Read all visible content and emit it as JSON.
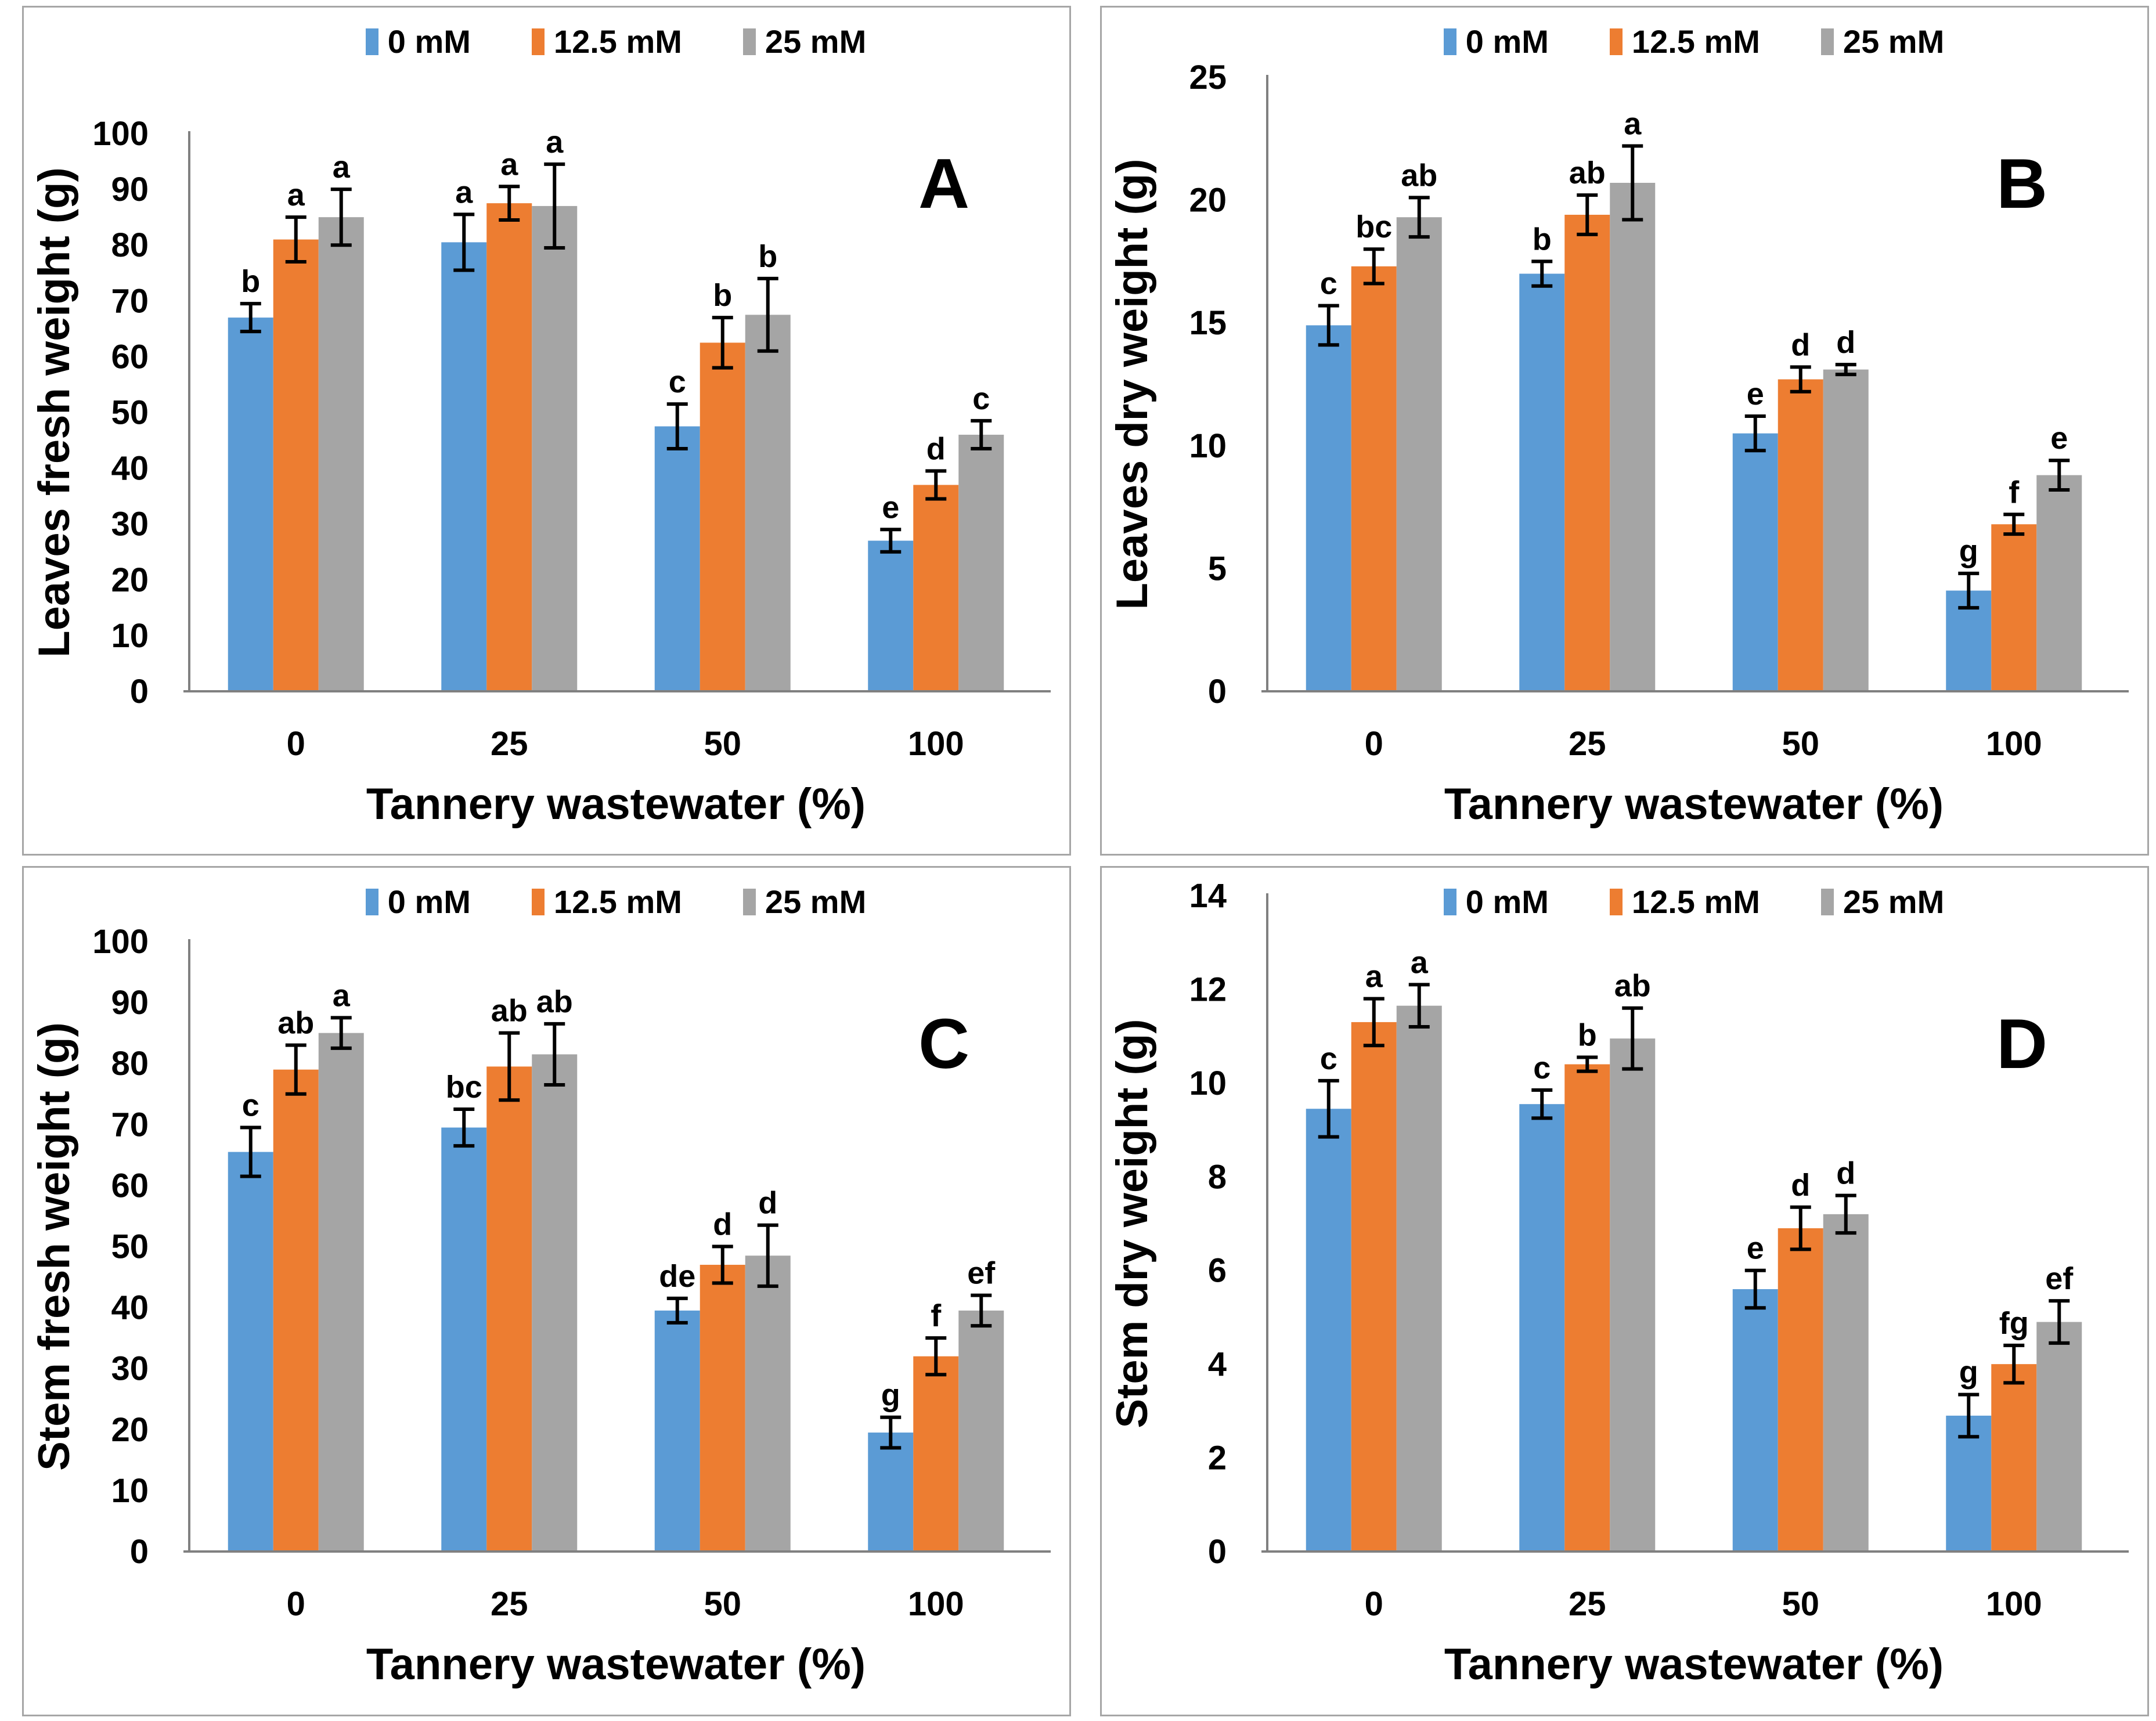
{
  "legend": {
    "position": "top",
    "labels": [
      "0 mM",
      "12.5 mM",
      "25 mM"
    ]
  },
  "colors": {
    "series": [
      "#5B9BD5",
      "#ED7D31",
      "#A5A5A5"
    ],
    "axis_line": "#808080",
    "error_bar": "#000000",
    "panel_border": "#a6a6a6",
    "text": "#000000"
  },
  "chart_data": [
    {
      "type": "bar",
      "panel_label": "A",
      "title": "",
      "ylabel": "Leaves fresh weight (g)",
      "xlabel": "Tannery wastewater (%)",
      "categories": [
        "0",
        "25",
        "50",
        "100"
      ],
      "ylim": [
        0,
        100
      ],
      "ytick_step": 10,
      "grid": false,
      "legend_position": "top",
      "series": [
        {
          "name": "0 mM",
          "values": [
            67,
            80.5,
            47.5,
            27
          ],
          "errors": [
            2.5,
            5,
            4,
            2
          ],
          "letters": [
            "b",
            "a",
            "c",
            "e"
          ]
        },
        {
          "name": "12.5 mM",
          "values": [
            81,
            87.5,
            62.5,
            37
          ],
          "errors": [
            4,
            3,
            4.5,
            2.5
          ],
          "letters": [
            "a",
            "a",
            "b",
            "d"
          ]
        },
        {
          "name": "25 mM",
          "values": [
            85,
            87,
            67.5,
            46
          ],
          "errors": [
            5,
            7.5,
            6.5,
            2.5
          ],
          "letters": [
            "a",
            "a",
            "b",
            "c"
          ]
        }
      ]
    },
    {
      "type": "bar",
      "panel_label": "B",
      "title": "",
      "ylabel": "Leaves dry weight (g)",
      "xlabel": "Tannery wastewater (%)",
      "categories": [
        "0",
        "25",
        "50",
        "100"
      ],
      "ylim": [
        0,
        25
      ],
      "ytick_step": 5,
      "grid": false,
      "legend_position": "top",
      "series": [
        {
          "name": "0 mM",
          "values": [
            14.9,
            17,
            10.5,
            4.1
          ],
          "errors": [
            0.8,
            0.5,
            0.7,
            0.7
          ],
          "letters": [
            "c",
            "b",
            "e",
            "g"
          ]
        },
        {
          "name": "12.5 mM",
          "values": [
            17.3,
            19.4,
            12.7,
            6.8
          ],
          "errors": [
            0.7,
            0.8,
            0.5,
            0.4
          ],
          "letters": [
            "bc",
            "ab",
            "d",
            "f"
          ]
        },
        {
          "name": "25 mM",
          "values": [
            19.3,
            20.7,
            13.1,
            8.8
          ],
          "errors": [
            0.8,
            1.5,
            0.2,
            0.6
          ],
          "letters": [
            "ab",
            "a",
            "d",
            "e"
          ]
        }
      ]
    },
    {
      "type": "bar",
      "panel_label": "C",
      "title": "",
      "ylabel": "Stem fresh weight (g)",
      "xlabel": "Tannery wastewater (%)",
      "categories": [
        "0",
        "25",
        "50",
        "100"
      ],
      "ylim": [
        0,
        100
      ],
      "ytick_step": 10,
      "grid": false,
      "legend_position": "top",
      "series": [
        {
          "name": "0 mM",
          "values": [
            65.5,
            69.5,
            39.5,
            19.5
          ],
          "errors": [
            4,
            3,
            2,
            2.5
          ],
          "letters": [
            "c",
            "bc",
            "de",
            "g"
          ]
        },
        {
          "name": "12.5 mM",
          "values": [
            79,
            79.5,
            47,
            32
          ],
          "errors": [
            4,
            5.5,
            3,
            3
          ],
          "letters": [
            "ab",
            "ab",
            "d",
            "f"
          ]
        },
        {
          "name": "25 mM",
          "values": [
            85,
            81.5,
            48.5,
            39.5
          ],
          "errors": [
            2.5,
            5,
            5,
            2.5
          ],
          "letters": [
            "a",
            "ab",
            "d",
            "ef"
          ]
        }
      ]
    },
    {
      "type": "bar",
      "panel_label": "D",
      "title": "",
      "ylabel": "Stem dry weight (g)",
      "xlabel": "Tannery wastewater (%)",
      "categories": [
        "0",
        "25",
        "50",
        "100"
      ],
      "ylim": [
        0,
        14
      ],
      "ytick_step": 2,
      "grid": false,
      "legend_position": "top",
      "series": [
        {
          "name": "0 mM",
          "values": [
            9.45,
            9.55,
            5.6,
            2.9
          ],
          "errors": [
            0.6,
            0.3,
            0.4,
            0.45
          ],
          "letters": [
            "c",
            "c",
            "e",
            "g"
          ]
        },
        {
          "name": "12.5 mM",
          "values": [
            11.3,
            10.4,
            6.9,
            4
          ],
          "errors": [
            0.5,
            0.15,
            0.45,
            0.4
          ],
          "letters": [
            "a",
            "b",
            "d",
            "fg"
          ]
        },
        {
          "name": "25 mM",
          "values": [
            11.65,
            10.95,
            7.2,
            4.9
          ],
          "errors": [
            0.45,
            0.65,
            0.4,
            0.45
          ],
          "letters": [
            "a",
            "ab",
            "d",
            "ef"
          ]
        }
      ]
    }
  ]
}
